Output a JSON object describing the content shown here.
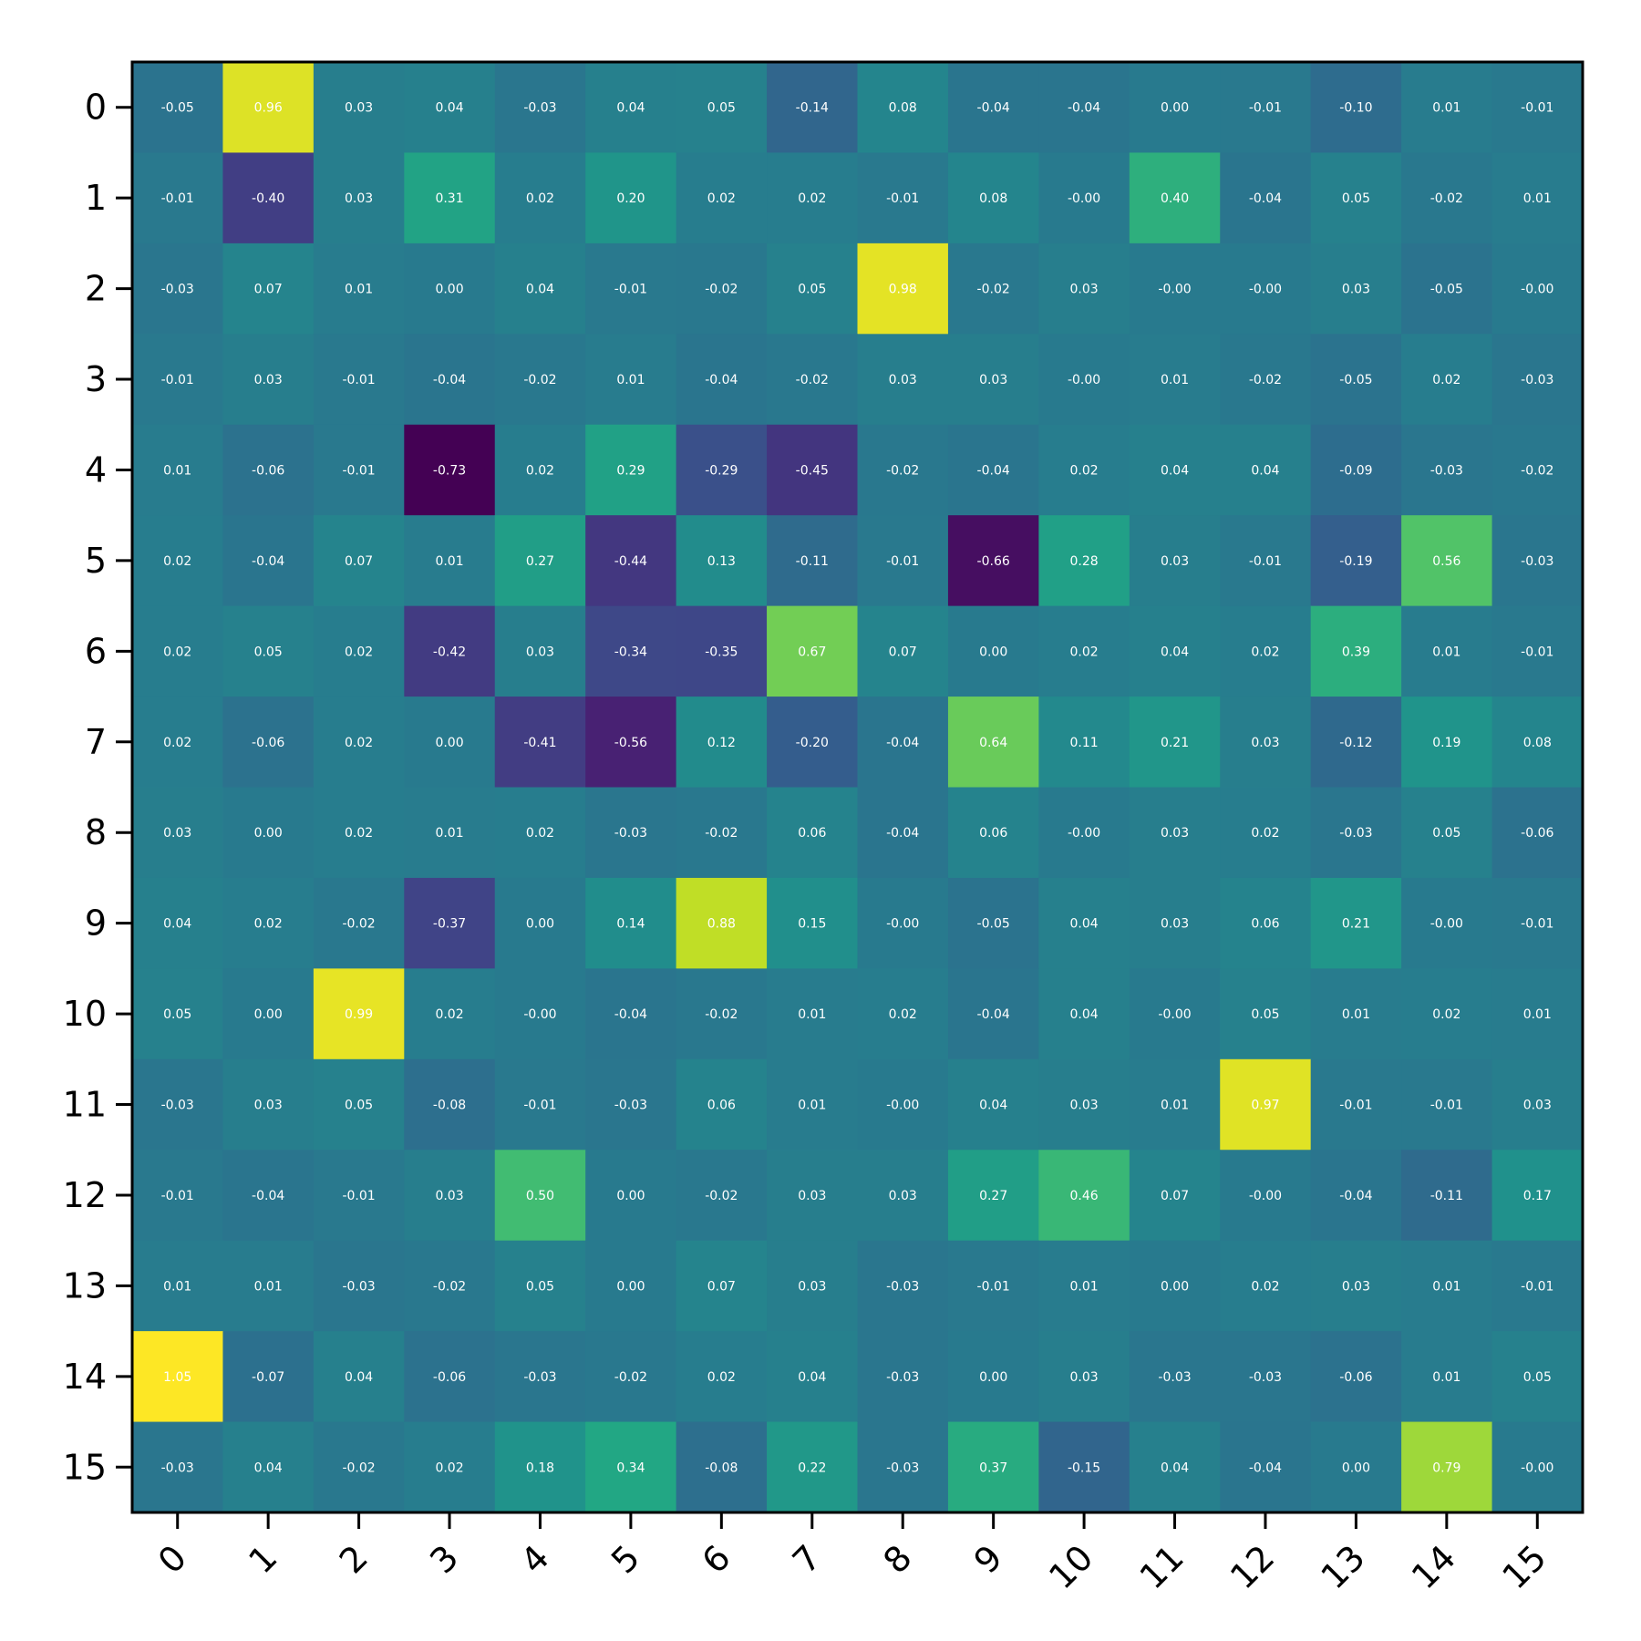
{
  "chart_data": {
    "type": "heatmap",
    "title": "",
    "xlabel": "",
    "ylabel": "",
    "x_categories": [
      "0",
      "1",
      "2",
      "3",
      "4",
      "5",
      "6",
      "7",
      "8",
      "9",
      "10",
      "11",
      "12",
      "13",
      "14",
      "15"
    ],
    "y_categories": [
      "0",
      "1",
      "2",
      "3",
      "4",
      "5",
      "6",
      "7",
      "8",
      "9",
      "10",
      "11",
      "12",
      "13",
      "14",
      "15"
    ],
    "colormap": "viridis",
    "value_range": [
      -0.73,
      1.05
    ],
    "cell_labels": true,
    "values": [
      [
        -0.05,
        0.96,
        0.03,
        0.04,
        -0.03,
        0.04,
        0.05,
        -0.14,
        0.08,
        -0.04,
        -0.04,
        0.0,
        -0.01,
        -0.1,
        0.01,
        -0.01
      ],
      [
        -0.01,
        -0.4,
        0.03,
        0.31,
        0.02,
        0.2,
        0.02,
        0.02,
        -0.01,
        0.08,
        -0.0,
        0.4,
        -0.04,
        0.05,
        -0.02,
        0.01
      ],
      [
        -0.03,
        0.07,
        0.01,
        0.0,
        0.04,
        -0.01,
        -0.02,
        0.05,
        0.98,
        -0.02,
        0.03,
        -0.0,
        -0.0,
        0.03,
        -0.05,
        -0.0
      ],
      [
        -0.01,
        0.03,
        -0.01,
        -0.04,
        -0.02,
        0.01,
        -0.04,
        -0.02,
        0.03,
        0.03,
        -0.0,
        0.01,
        -0.02,
        -0.05,
        0.02,
        -0.03
      ],
      [
        0.01,
        -0.06,
        -0.01,
        -0.73,
        0.02,
        0.29,
        -0.29,
        -0.45,
        -0.02,
        -0.04,
        0.02,
        0.04,
        0.04,
        -0.09,
        -0.03,
        -0.02
      ],
      [
        0.02,
        -0.04,
        0.07,
        0.01,
        0.27,
        -0.44,
        0.13,
        -0.11,
        -0.01,
        -0.66,
        0.28,
        0.03,
        -0.01,
        -0.19,
        0.56,
        -0.03
      ],
      [
        0.02,
        0.05,
        0.02,
        -0.42,
        0.03,
        -0.34,
        -0.35,
        0.67,
        0.07,
        0.0,
        0.02,
        0.04,
        0.02,
        0.39,
        0.01,
        -0.01
      ],
      [
        0.02,
        -0.06,
        0.02,
        0.0,
        -0.41,
        -0.56,
        0.12,
        -0.2,
        -0.04,
        0.64,
        0.11,
        0.21,
        0.03,
        -0.12,
        0.19,
        0.08
      ],
      [
        0.03,
        0.0,
        0.02,
        0.01,
        0.02,
        -0.03,
        -0.02,
        0.06,
        -0.04,
        0.06,
        -0.0,
        0.03,
        0.02,
        -0.03,
        0.05,
        -0.06
      ],
      [
        0.04,
        0.02,
        -0.02,
        -0.37,
        0.0,
        0.14,
        0.88,
        0.15,
        -0.0,
        -0.05,
        0.04,
        0.03,
        0.06,
        0.21,
        -0.0,
        -0.01
      ],
      [
        0.05,
        0.0,
        0.99,
        0.02,
        -0.0,
        -0.04,
        -0.02,
        0.01,
        0.02,
        -0.04,
        0.04,
        -0.0,
        0.05,
        0.01,
        0.02,
        0.01
      ],
      [
        -0.03,
        0.03,
        0.05,
        -0.08,
        -0.01,
        -0.03,
        0.06,
        0.01,
        -0.0,
        0.04,
        0.03,
        0.01,
        0.97,
        -0.01,
        -0.01,
        0.03
      ],
      [
        -0.01,
        -0.04,
        -0.01,
        0.03,
        0.5,
        0.0,
        -0.02,
        0.03,
        0.03,
        0.27,
        0.46,
        0.07,
        -0.0,
        -0.04,
        -0.11,
        0.17
      ],
      [
        0.01,
        0.01,
        -0.03,
        -0.02,
        0.05,
        0.0,
        0.07,
        0.03,
        -0.03,
        -0.01,
        0.01,
        0.0,
        0.02,
        0.03,
        0.01,
        -0.01
      ],
      [
        1.05,
        -0.07,
        0.04,
        -0.06,
        -0.03,
        -0.02,
        0.02,
        0.04,
        -0.03,
        0.0,
        0.03,
        -0.03,
        -0.03,
        -0.06,
        0.01,
        0.05
      ],
      [
        -0.03,
        0.04,
        -0.02,
        0.02,
        0.18,
        0.34,
        -0.08,
        0.22,
        -0.03,
        0.37,
        -0.15,
        0.04,
        -0.04,
        0.0,
        0.79,
        -0.0
      ]
    ]
  }
}
